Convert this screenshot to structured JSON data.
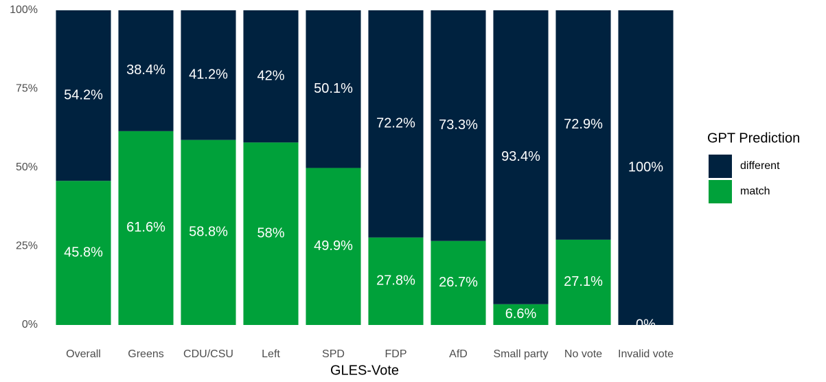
{
  "chart_data": {
    "type": "stacked_bar",
    "x_label": "GLES-Vote",
    "legend_title": "GPT Prediction",
    "legend_position": "right",
    "categories": [
      "Overall",
      "Greens",
      "CDU/CSU",
      "Left",
      "SPD",
      "FDP",
      "AfD",
      "Small party",
      "No vote",
      "Invalid vote"
    ],
    "series": [
      {
        "name": "different",
        "color": "#00223f",
        "values": [
          54.2,
          38.4,
          41.2,
          42,
          50.1,
          72.2,
          73.3,
          93.4,
          72.9,
          100
        ],
        "value_labels": [
          "54.2%",
          "38.4%",
          "41.2%",
          "42%",
          "50.1%",
          "72.2%",
          "73.3%",
          "93.4%",
          "72.9%",
          "100%"
        ]
      },
      {
        "name": "match",
        "color": "#00a13a",
        "values": [
          45.8,
          61.6,
          58.8,
          58,
          49.9,
          27.8,
          26.7,
          6.6,
          27.1,
          0
        ],
        "value_labels": [
          "45.8%",
          "61.6%",
          "58.8%",
          "58%",
          "49.9%",
          "27.8%",
          "26.7%",
          "6.6%",
          "27.1%",
          "0%"
        ]
      }
    ],
    "ylim": [
      0,
      100
    ],
    "yticks": [
      {
        "value": 0,
        "label": "0%"
      },
      {
        "value": 25,
        "label": "25%"
      },
      {
        "value": 50,
        "label": "50%"
      },
      {
        "value": 75,
        "label": "75%"
      },
      {
        "value": 100,
        "label": "100%"
      }
    ]
  }
}
